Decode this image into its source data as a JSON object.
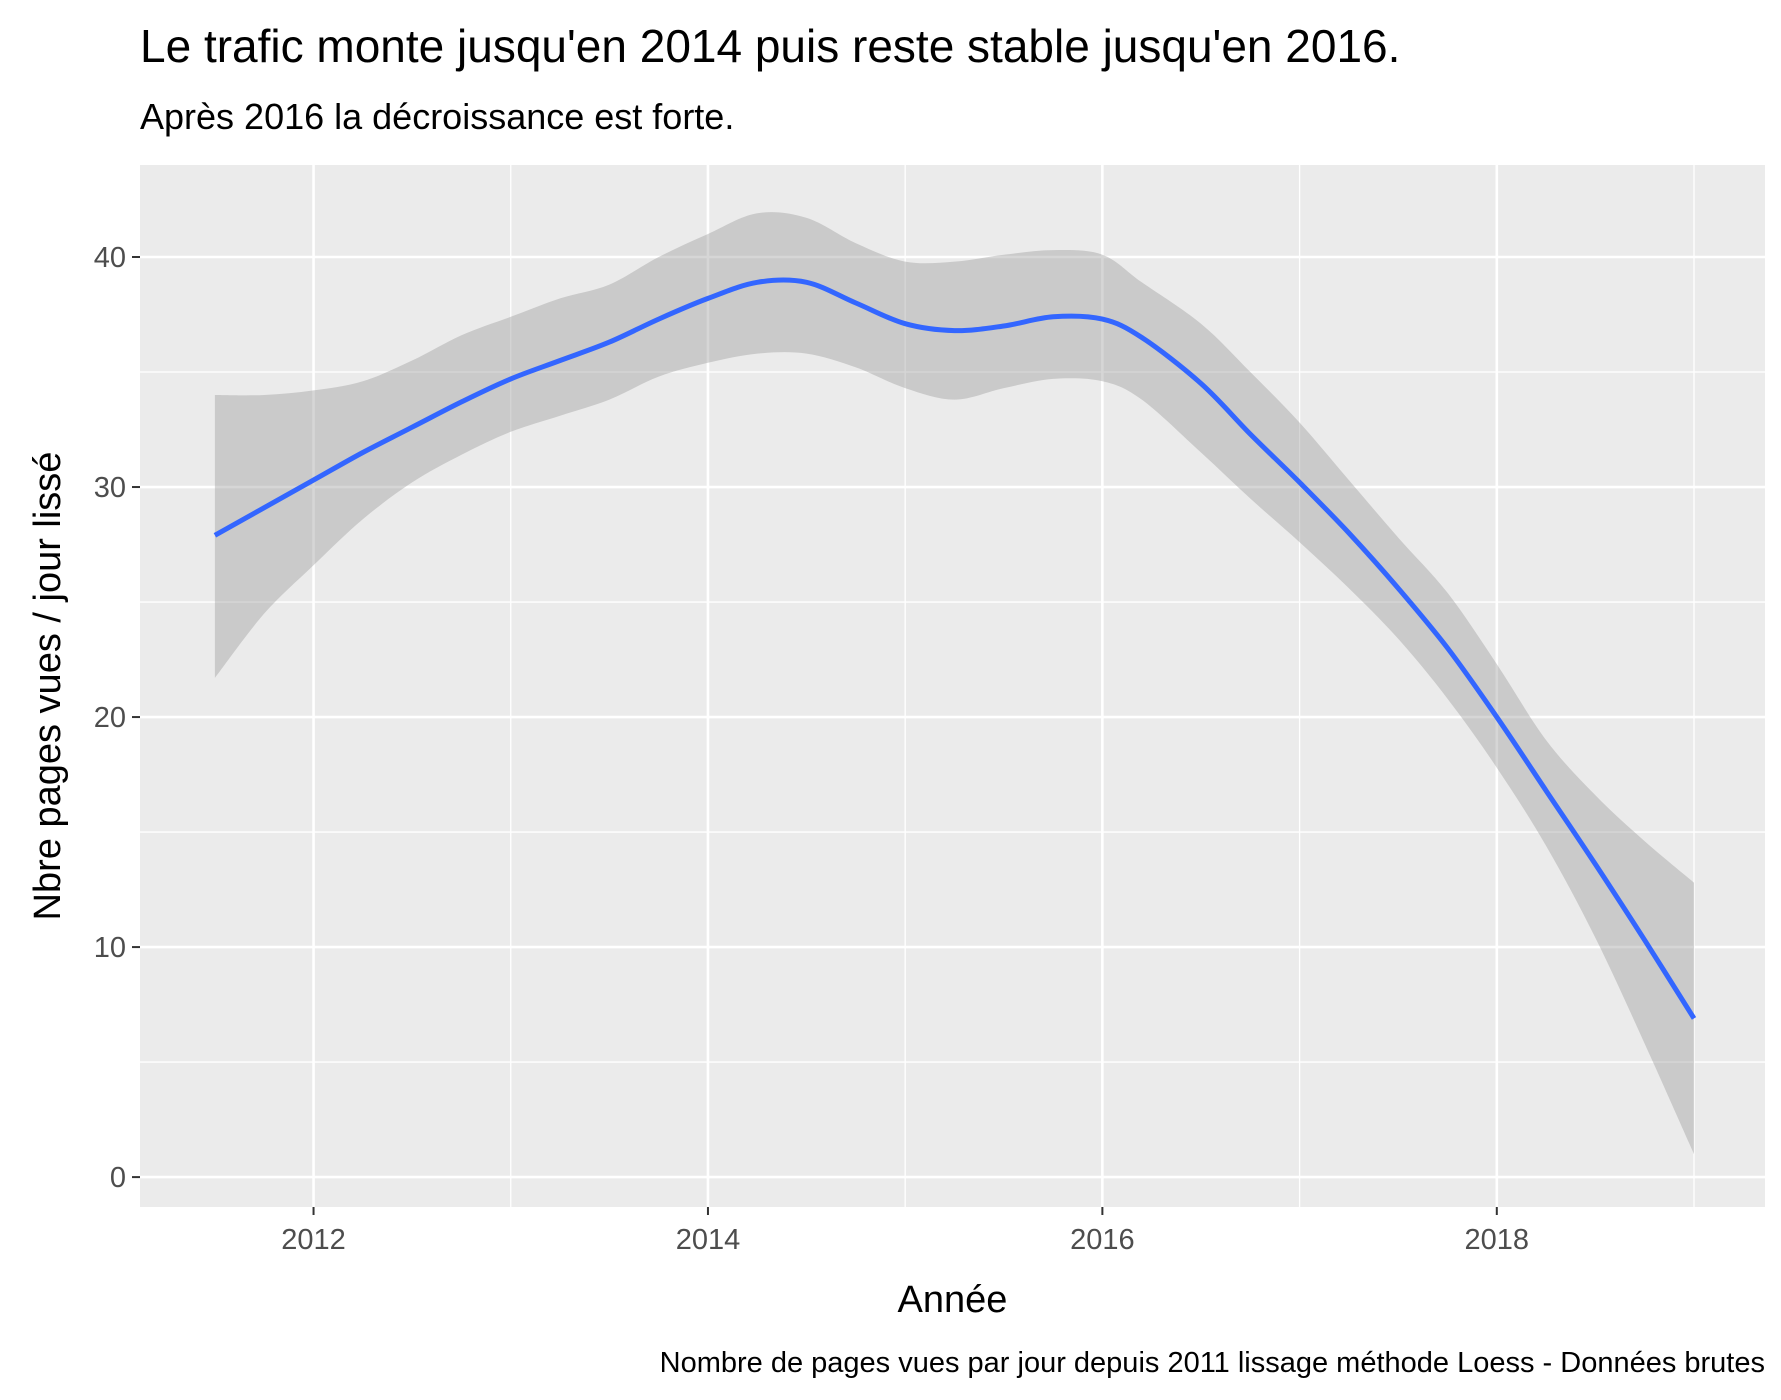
{
  "chart_data": {
    "type": "line",
    "title": "Le trafic monte jusqu'en 2014 puis reste stable jusqu'en 2016.",
    "subtitle": "Après 2016 la décroissance est forte.",
    "xlabel": "Année",
    "ylabel": "Nbre pages vues / jour lissé",
    "caption": "Nombre de pages vues par jour depuis 2011 lissage méthode Loess - Données brutes",
    "xlim": [
      2011.12,
      2019.36
    ],
    "ylim": [
      -1.3,
      44
    ],
    "x_ticks": [
      2012,
      2014,
      2016,
      2018
    ],
    "x_tick_labels": [
      "2012",
      "2014",
      "2016",
      "2018"
    ],
    "y_ticks": [
      0,
      10,
      20,
      30,
      40
    ],
    "y_tick_labels": [
      "0",
      "10",
      "20",
      "30",
      "40"
    ],
    "grid": true,
    "colors": {
      "panel_background": "#ebebeb",
      "grid": "#ffffff",
      "line": "#3366ff",
      "ribbon": "#999999"
    },
    "series": [
      {
        "x": [
          2011.5,
          2011.75,
          2012.0,
          2012.25,
          2012.5,
          2012.75,
          2013.0,
          2013.25,
          2013.5,
          2013.75,
          2014.0,
          2014.25,
          2014.5,
          2014.75,
          2015.0,
          2015.25,
          2015.5,
          2015.75,
          2016.0,
          2016.2,
          2016.5,
          2016.75,
          2017.0,
          2017.25,
          2017.5,
          2017.75,
          2018.0,
          2018.25,
          2018.5,
          2018.75,
          2019.0
        ],
        "y": [
          27.9,
          29.1,
          30.3,
          31.5,
          32.6,
          33.7,
          34.7,
          35.5,
          36.3,
          37.3,
          38.2,
          38.9,
          38.9,
          38.0,
          37.1,
          36.8,
          37.0,
          37.4,
          37.3,
          36.5,
          34.5,
          32.3,
          30.2,
          28.0,
          25.6,
          23.0,
          20.0,
          16.8,
          13.6,
          10.3,
          6.9
        ],
        "ymin": [
          21.7,
          24.5,
          26.6,
          28.6,
          30.2,
          31.4,
          32.4,
          33.1,
          33.8,
          34.8,
          35.4,
          35.8,
          35.8,
          35.2,
          34.3,
          33.8,
          34.3,
          34.7,
          34.6,
          33.8,
          31.5,
          29.5,
          27.6,
          25.6,
          23.4,
          20.8,
          17.8,
          14.4,
          10.4,
          5.8,
          1.0
        ],
        "ymax": [
          34.0,
          34.0,
          34.2,
          34.6,
          35.5,
          36.6,
          37.4,
          38.2,
          38.8,
          40.0,
          41.0,
          41.9,
          41.7,
          40.6,
          39.8,
          39.8,
          40.1,
          40.3,
          40.1,
          38.9,
          37.1,
          35.0,
          32.8,
          30.3,
          27.8,
          25.4,
          22.3,
          19.0,
          16.6,
          14.6,
          12.8
        ]
      }
    ]
  }
}
